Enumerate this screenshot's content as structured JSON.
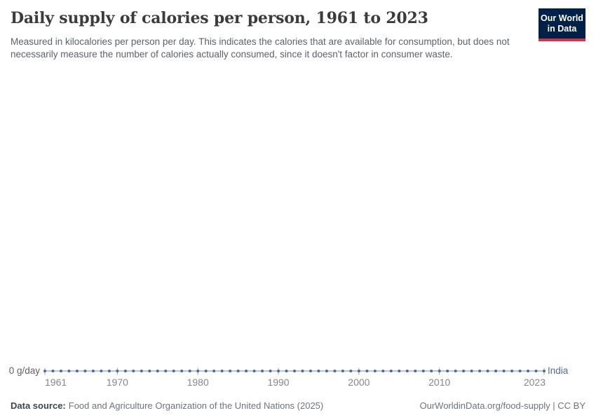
{
  "header": {
    "title": "Daily supply of calories per person, 1961 to 2023",
    "subtitle": "Measured in kilocalories per person per day. This indicates the calories that are available for consumption, but does not necessarily measure the number of calories actually consumed, since it doesn't factor in consumer waste.",
    "logo": {
      "line1": "Our World",
      "line2": "in Data"
    }
  },
  "chart": {
    "y_axis_label": "0 g/day",
    "entity_label": "India"
  },
  "footer": {
    "source_label": "Data source:",
    "source_text": "Food and Agriculture Organization of the United Nations (2025)",
    "license_text": "OurWorldinData.org/food-supply | CC BY"
  },
  "colors": {
    "line": "#9fb1d2",
    "marker": "#4c6a9c",
    "entity_text": "#4c6a9c",
    "tick": "#9aa5b1",
    "logo_bg": "#002147",
    "logo_red": "#cf3444"
  },
  "chart_data": {
    "type": "line",
    "title": "Daily supply of calories per person, 1961 to 2023",
    "xlabel": "",
    "ylabel": "g/day",
    "grid": false,
    "legend_position": "end-of-line",
    "x_range": [
      1961,
      2023
    ],
    "x_ticks": [
      1961,
      1970,
      1980,
      1990,
      2000,
      2010,
      2023
    ],
    "y_ticks": [
      "0 g/day"
    ],
    "ylim": [
      0,
      0
    ],
    "x": [
      1961,
      1962,
      1963,
      1964,
      1965,
      1966,
      1967,
      1968,
      1969,
      1970,
      1971,
      1972,
      1973,
      1974,
      1975,
      1976,
      1977,
      1978,
      1979,
      1980,
      1981,
      1982,
      1983,
      1984,
      1985,
      1986,
      1987,
      1988,
      1989,
      1990,
      1991,
      1992,
      1993,
      1994,
      1995,
      1996,
      1997,
      1998,
      1999,
      2000,
      2001,
      2002,
      2003,
      2004,
      2005,
      2006,
      2007,
      2008,
      2009,
      2010,
      2011,
      2012,
      2013,
      2014,
      2015,
      2016,
      2017,
      2018,
      2019,
      2020,
      2021,
      2022,
      2023
    ],
    "series": [
      {
        "name": "India",
        "values": [
          0,
          0,
          0,
          0,
          0,
          0,
          0,
          0,
          0,
          0,
          0,
          0,
          0,
          0,
          0,
          0,
          0,
          0,
          0,
          0,
          0,
          0,
          0,
          0,
          0,
          0,
          0,
          0,
          0,
          0,
          0,
          0,
          0,
          0,
          0,
          0,
          0,
          0,
          0,
          0,
          0,
          0,
          0,
          0,
          0,
          0,
          0,
          0,
          0,
          0,
          0,
          0,
          0,
          0,
          0,
          0,
          0,
          0,
          0,
          0,
          0,
          0,
          0
        ]
      }
    ]
  }
}
